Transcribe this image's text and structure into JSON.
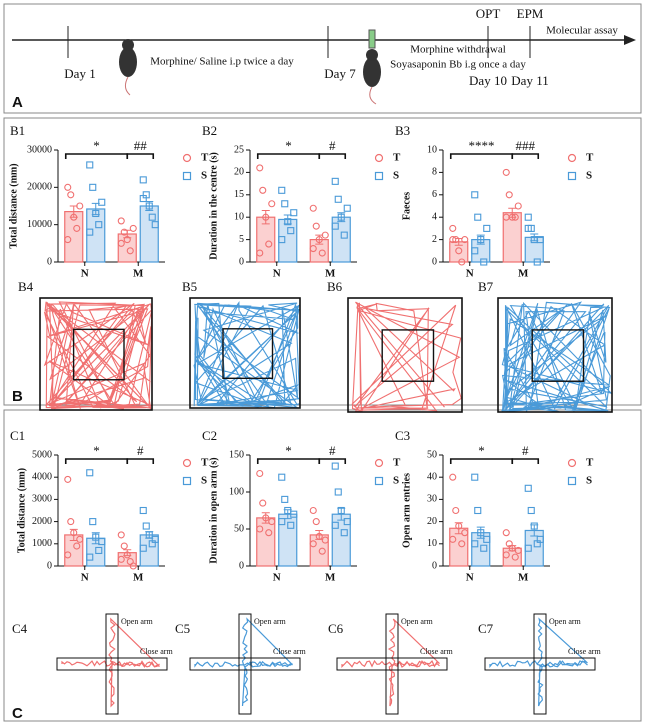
{
  "timeline": {
    "panel": "A",
    "events": [
      {
        "label": "Day 1",
        "note": "Morphine/ Saline i.p twice a day"
      },
      {
        "label": "Day 7",
        "note": "Morphine withdrawal",
        "note2": "Soyasaponin Bb i.g once a day"
      },
      {
        "label": "Day 10",
        "test": "OPT"
      },
      {
        "label": "Day 11",
        "test": "EPM"
      }
    ],
    "end": "Molecular assay"
  },
  "panel_b": "B",
  "panel_c": "C",
  "chart_data": [
    {
      "type": "bar",
      "label": "B1",
      "ylabel": "Total distance (mm)",
      "categories": [
        "N",
        "M"
      ],
      "ylim": [
        0,
        30000
      ],
      "yticks": [
        0,
        10000,
        20000,
        30000
      ],
      "annotations": [
        "*",
        "##"
      ],
      "series": [
        {
          "name": "T",
          "color": "#f07070",
          "marker": "circle",
          "values": [
            13500,
            7500
          ],
          "errors": [
            1500,
            1000
          ],
          "points": [
            [
              20000,
              18000,
              12000,
              9000,
              15000,
              6000
            ],
            [
              11000,
              8000,
              6000,
              3000,
              9000,
              5000
            ]
          ]
        },
        {
          "name": "S",
          "color": "#4a9ad8",
          "marker": "square",
          "values": [
            14200,
            15000
          ],
          "errors": [
            1500,
            1200
          ],
          "points": [
            [
              26000,
              20000,
              13000,
              10000,
              16000,
              8000
            ],
            [
              22000,
              18000,
              15000,
              12000,
              10000,
              17000
            ]
          ]
        }
      ]
    },
    {
      "type": "bar",
      "label": "B2",
      "ylabel": "Duration in the centre (s)",
      "categories": [
        "N",
        "M"
      ],
      "ylim": [
        0,
        25
      ],
      "yticks": [
        0,
        5,
        10,
        15,
        20,
        25
      ],
      "annotations": [
        "*",
        "#"
      ],
      "series": [
        {
          "name": "T",
          "color": "#f07070",
          "marker": "circle",
          "values": [
            10,
            5
          ],
          "errors": [
            1.5,
            1
          ],
          "points": [
            [
              21,
              16,
              10,
              4,
              13,
              2
            ],
            [
              12,
              8,
              5,
              2,
              6,
              3
            ]
          ]
        },
        {
          "name": "S",
          "color": "#4a9ad8",
          "marker": "square",
          "values": [
            9.5,
            10
          ],
          "errors": [
            1,
            1
          ],
          "points": [
            [
              16,
              13,
              9,
              7,
              11,
              5
            ],
            [
              18,
              14,
              10,
              6,
              12,
              8
            ]
          ]
        }
      ]
    },
    {
      "type": "bar",
      "label": "B3",
      "ylabel": "Faeces",
      "categories": [
        "N",
        "M"
      ],
      "ylim": [
        0,
        10
      ],
      "yticks": [
        0,
        2,
        4,
        6,
        8,
        10
      ],
      "annotations": [
        "****",
        "###"
      ],
      "series": [
        {
          "name": "T",
          "color": "#f07070",
          "marker": "circle",
          "values": [
            1.8,
            4.4
          ],
          "errors": [
            0.3,
            0.4
          ],
          "points": [
            [
              3,
              2,
              1,
              0,
              2,
              2
            ],
            [
              8,
              6,
              4,
              4,
              5,
              4
            ]
          ]
        },
        {
          "name": "S",
          "color": "#4a9ad8",
          "marker": "square",
          "values": [
            2.0,
            2.2
          ],
          "errors": [
            0.4,
            0.3
          ],
          "points": [
            [
              6,
              4,
              2,
              0,
              3,
              1
            ],
            [
              4,
              3,
              2,
              0,
              2,
              3
            ]
          ]
        }
      ]
    },
    {
      "type": "bar",
      "label": "C1",
      "ylabel": "Total distance (mm)",
      "categories": [
        "N",
        "M"
      ],
      "ylim": [
        0,
        5000
      ],
      "yticks": [
        0,
        1000,
        2000,
        3000,
        4000,
        5000
      ],
      "annotations": [
        "*",
        "#"
      ],
      "series": [
        {
          "name": "T",
          "color": "#f07070",
          "marker": "circle",
          "values": [
            1400,
            600
          ],
          "errors": [
            250,
            130
          ],
          "points": [
            [
              3900,
              2000,
              1500,
              900,
              1200,
              500
            ],
            [
              1400,
              900,
              500,
              200,
              0,
              300
            ]
          ]
        },
        {
          "name": "S",
          "color": "#4a9ad8",
          "marker": "square",
          "values": [
            1250,
            1400
          ],
          "errors": [
            250,
            150
          ],
          "points": [
            [
              4200,
              2000,
              1300,
              700,
              1100,
              400
            ],
            [
              2500,
              1800,
              1400,
              1000,
              1200,
              800
            ]
          ]
        }
      ]
    },
    {
      "type": "bar",
      "label": "C2",
      "ylabel": "Duration in open arm (s)",
      "categories": [
        "N",
        "M"
      ],
      "ylim": [
        0,
        150
      ],
      "yticks": [
        0,
        50,
        100,
        150
      ],
      "annotations": [
        "*",
        "#"
      ],
      "series": [
        {
          "name": "T",
          "color": "#f07070",
          "marker": "circle",
          "values": [
            65,
            42
          ],
          "errors": [
            7,
            6
          ],
          "points": [
            [
              125,
              85,
              65,
              45,
              60,
              50
            ],
            [
              75,
              60,
              40,
              20,
              35,
              30
            ]
          ]
        },
        {
          "name": "S",
          "color": "#4a9ad8",
          "marker": "square",
          "values": [
            70,
            70
          ],
          "errors": [
            6,
            8
          ],
          "points": [
            [
              120,
              90,
              75,
              55,
              70,
              60
            ],
            [
              135,
              100,
              75,
              45,
              60,
              55
            ]
          ]
        }
      ]
    },
    {
      "type": "bar",
      "label": "C3",
      "ylabel": "Open arm entries",
      "categories": [
        "N",
        "M"
      ],
      "ylim": [
        0,
        50
      ],
      "yticks": [
        0,
        10,
        20,
        30,
        40,
        50
      ],
      "annotations": [
        "*",
        "#"
      ],
      "series": [
        {
          "name": "T",
          "color": "#f07070",
          "marker": "circle",
          "values": [
            17,
            8
          ],
          "errors": [
            2.5,
            1.2
          ],
          "points": [
            [
              40,
              25,
              18,
              10,
              15,
              12
            ],
            [
              15,
              10,
              8,
              4,
              7,
              5
            ]
          ]
        },
        {
          "name": "S",
          "color": "#4a9ad8",
          "marker": "square",
          "values": [
            15,
            16
          ],
          "errors": [
            2.5,
            2.5
          ],
          "points": [
            [
              40,
              25,
              15,
              8,
              12,
              10
            ],
            [
              35,
              25,
              18,
              10,
              12,
              8
            ]
          ]
        }
      ]
    }
  ],
  "open_field": [
    {
      "label": "B4",
      "color": "#f07070"
    },
    {
      "label": "B5",
      "color": "#4a9ad8"
    },
    {
      "label": "B6",
      "color": "#f07070"
    },
    {
      "label": "B7",
      "color": "#4a9ad8"
    }
  ],
  "maze": [
    {
      "label": "C4",
      "color": "#f07070"
    },
    {
      "label": "C5",
      "color": "#4a9ad8"
    },
    {
      "label": "C6",
      "color": "#f07070"
    },
    {
      "label": "C7",
      "color": "#4a9ad8"
    }
  ],
  "maze_labels": {
    "open": "Open arm",
    "close": "Close arm"
  }
}
